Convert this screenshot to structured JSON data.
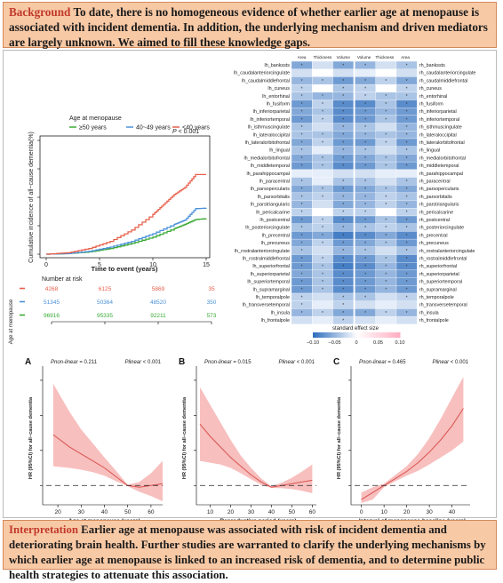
{
  "background": {
    "keyword": "Background",
    "text": " To date, there is no homogeneous evidence of whether earlier age at menopause is associated with incident dementia. In addition, the underlying mechanism and driven mediators are largely unknown. We aimed to fill these knowledge gaps."
  },
  "interpretation": {
    "keyword": "Interpretation",
    "text": " Earlier age at menopause was associated with risk of incident dementia and deteriorating brain health. Further studies are warranted to clarify the underlying mechanisms by which earlier age at menopause is linked to an increased risk of dementia, and to determine public health strategies to attenuate this association."
  },
  "colors": {
    "ge50": "#3aaa35",
    "mid": "#4a90d9",
    "lt40": "#e8604c",
    "ci_fill": "#f4a9a8",
    "ci_line": "#d9534f"
  },
  "km": {
    "legend_title": "Age at menopause",
    "legend": [
      "≥50 years",
      "40~49 years",
      "<40 years"
    ],
    "p_label": "P",
    "p_value": " < 0.001",
    "ylabel": "Cumulative incidence of all−cause dementia(%)",
    "xlabel": "Time to event (years)",
    "x_ticks": [
      "0",
      "5",
      "10",
      "15"
    ],
    "y_ticks": [
      "0",
      "1",
      "2",
      "3",
      "4"
    ],
    "risk_title": "Number at risk",
    "risk_group_label": "Age at menopause",
    "risk_rows": [
      [
        "4268",
        "6125",
        "5869",
        "35"
      ],
      [
        "51345",
        "50364",
        "48520",
        "350"
      ],
      [
        "96916",
        "95335",
        "92211",
        "573"
      ]
    ],
    "risk_x_ticks": [
      "0",
      "5",
      "10",
      "15"
    ],
    "chart_data": {
      "type": "line",
      "title": "",
      "xlabel": "Time to event (years)",
      "ylabel": "Cumulative incidence of all−cause dementia(%)",
      "xlim": [
        0,
        15
      ],
      "ylim": [
        0,
        4
      ],
      "series": [
        {
          "name": "≥50 years",
          "x": [
            0,
            2,
            4,
            6,
            8,
            10,
            12,
            13,
            14,
            15
          ],
          "y": [
            0,
            0.02,
            0.08,
            0.2,
            0.38,
            0.6,
            0.9,
            1.05,
            1.22,
            1.25
          ]
        },
        {
          "name": "40~49 years",
          "x": [
            0,
            2,
            4,
            6,
            8,
            10,
            12,
            13,
            14,
            15
          ],
          "y": [
            0,
            0.02,
            0.1,
            0.25,
            0.45,
            0.72,
            1.05,
            1.2,
            1.6,
            1.62
          ]
        },
        {
          "name": "<40 years",
          "x": [
            0,
            2,
            4,
            6,
            8,
            10,
            11,
            12,
            13,
            14,
            15
          ],
          "y": [
            0,
            0.05,
            0.2,
            0.45,
            0.85,
            1.4,
            1.75,
            2.1,
            2.35,
            2.8,
            2.8
          ]
        }
      ]
    }
  },
  "heatmap": {
    "columns": [
      "Area",
      "Thickness",
      "Volume",
      "Volume",
      "Thickness",
      "Area"
    ],
    "left_labels": [
      "lh_bankssts",
      "lh_caudalanteriorcingulate",
      "lh_caudalmiddlefrontal",
      "lh_cuneus",
      "lh_entorhinal",
      "lh_fusiform",
      "lh_inferiorparietal",
      "lh_inferiortemporal",
      "lh_isthmuscingulate",
      "lh_lateraloccipital",
      "lh_lateralorbitofrontal",
      "lh_lingual",
      "lh_medialorbitofrontal",
      "lh_middletemporal",
      "lh_parahippocampal",
      "lh_paracentral",
      "lh_parsopercularis",
      "lh_parsorbitalis",
      "lh_parstriangularis",
      "lh_pericalcarine",
      "lh_postcentral",
      "lh_posteriorcingulate",
      "lh_precentral",
      "lh_precuneus",
      "lh_rostralanteriorcingulate",
      "lh_rostralmiddlefrontal",
      "lh_superiorfrontal",
      "lh_superiorparietal",
      "lh_superiortemporal",
      "lh_supramarginal",
      "lh_temporalpole",
      "lh_transversetemporal",
      "lh_insula",
      "lh_frontalpole"
    ],
    "right_labels": [
      "rh_bankssts",
      "rh_caudalanteriorcingulate",
      "rh_caudalmiddlefrontal",
      "rh_cuneus",
      "rh_entorhinal",
      "rh_fusiform",
      "rh_inferiorparietal",
      "rh_inferiortemporal",
      "rh_isthmuscingulate",
      "rh_lateraloccipital",
      "rh_lateralorbitofrontal",
      "rh_lingual",
      "rh_medialorbitofrontal",
      "rh_middletemporal",
      "rh_parahippocampal",
      "rh_paracentral",
      "rh_parsopercularis",
      "rh_parsorbitalis",
      "rh_parstriangularis",
      "rh_pericalcarine",
      "rh_postcentral",
      "rh_posteriorcingulate",
      "rh_precentral",
      "rh_precuneus",
      "rh_rostralanteriorcingulate",
      "rh_rostralmiddlefrontal",
      "rh_superiorfrontal",
      "rh_superiorparietal",
      "rh_superiortemporal",
      "rh_supramarginal",
      "rh_temporalpole",
      "rh_transversetemporal",
      "rh_insula",
      "rh_frontalpole"
    ],
    "scale_title": "standard effect size",
    "scale_ticks": [
      "−0.10",
      "−0.05",
      "0",
      "0.05",
      "0.10"
    ],
    "chart_data": {
      "type": "heatmap",
      "values": [
        [
          -0.06,
          -0.02,
          -0.06,
          -0.05,
          -0.02,
          -0.04
        ],
        [
          -0.02,
          0.0,
          -0.02,
          -0.01,
          0.0,
          -0.02
        ],
        [
          -0.05,
          -0.04,
          -0.07,
          -0.06,
          -0.03,
          -0.06
        ],
        [
          -0.03,
          0.0,
          -0.04,
          -0.03,
          0.0,
          -0.03
        ],
        [
          -0.04,
          -0.05,
          -0.05,
          -0.03,
          -0.04,
          -0.04
        ],
        [
          -0.07,
          -0.03,
          -0.08,
          -0.08,
          -0.04,
          -0.08
        ],
        [
          -0.06,
          -0.04,
          -0.08,
          -0.07,
          -0.05,
          -0.07
        ],
        [
          -0.07,
          -0.03,
          -0.08,
          -0.07,
          -0.04,
          -0.07
        ],
        [
          -0.04,
          -0.02,
          -0.05,
          -0.04,
          -0.02,
          -0.05
        ],
        [
          -0.04,
          -0.04,
          -0.06,
          -0.05,
          -0.04,
          -0.05
        ],
        [
          -0.06,
          -0.03,
          -0.07,
          -0.07,
          -0.03,
          -0.07
        ],
        [
          -0.04,
          -0.01,
          -0.05,
          -0.04,
          -0.02,
          -0.04
        ],
        [
          -0.06,
          -0.04,
          -0.07,
          -0.06,
          -0.04,
          -0.06
        ],
        [
          -0.07,
          -0.04,
          -0.08,
          -0.07,
          -0.04,
          -0.07
        ],
        [
          -0.01,
          -0.01,
          -0.02,
          -0.02,
          -0.01,
          -0.01
        ],
        [
          -0.04,
          -0.01,
          -0.04,
          -0.04,
          -0.02,
          -0.04
        ],
        [
          -0.06,
          -0.04,
          -0.07,
          -0.06,
          -0.04,
          -0.06
        ],
        [
          -0.04,
          -0.03,
          -0.05,
          -0.05,
          -0.03,
          -0.04
        ],
        [
          -0.05,
          -0.02,
          -0.06,
          -0.05,
          -0.03,
          -0.05
        ],
        [
          -0.03,
          0.0,
          -0.03,
          -0.03,
          0.0,
          -0.03
        ],
        [
          -0.07,
          -0.03,
          -0.08,
          -0.07,
          -0.04,
          -0.07
        ],
        [
          -0.04,
          -0.03,
          -0.05,
          -0.04,
          -0.03,
          -0.04
        ],
        [
          -0.07,
          -0.06,
          -0.09,
          -0.08,
          -0.06,
          -0.08
        ],
        [
          -0.06,
          -0.03,
          -0.07,
          -0.06,
          -0.04,
          -0.07
        ],
        [
          -0.04,
          -0.02,
          -0.05,
          -0.04,
          -0.02,
          -0.04
        ],
        [
          -0.07,
          -0.03,
          -0.08,
          -0.07,
          -0.04,
          -0.08
        ],
        [
          -0.07,
          -0.04,
          -0.09,
          -0.08,
          -0.05,
          -0.08
        ],
        [
          -0.06,
          -0.04,
          -0.08,
          -0.07,
          -0.05,
          -0.07
        ],
        [
          -0.07,
          -0.04,
          -0.08,
          -0.07,
          -0.05,
          -0.07
        ],
        [
          -0.07,
          -0.04,
          -0.08,
          -0.07,
          -0.05,
          -0.07
        ],
        [
          -0.03,
          -0.02,
          -0.04,
          -0.04,
          -0.02,
          -0.03
        ],
        [
          -0.03,
          -0.01,
          -0.03,
          -0.02,
          -0.01,
          -0.02
        ],
        [
          -0.05,
          -0.03,
          -0.06,
          -0.06,
          -0.03,
          -0.05
        ],
        [
          -0.02,
          -0.01,
          -0.03,
          -0.02,
          -0.01,
          -0.02
        ]
      ],
      "xlabel": "",
      "ylabel": ""
    }
  },
  "rcs_panels": [
    {
      "letter": "A",
      "p_nonlinear_label": "Pnon-linear",
      "p_nonlinear_value": " = 0.211",
      "p_linear_label": "Plinear",
      "p_linear_value": " < 0.001",
      "ylabel": "HR (95%CI) for all−cause dementia",
      "xlabel": "Age at menopause (years)",
      "x_ticks": [
        "20",
        "30",
        "40",
        "50",
        "60"
      ],
      "y_ticks": [
        "1",
        "2",
        "3",
        "4"
      ],
      "chart_data": {
        "type": "line",
        "xlim": [
          15,
          65
        ],
        "ylim": [
          0.5,
          4.2
        ],
        "x": [
          18,
          25,
          30,
          35,
          40,
          45,
          50,
          55,
          60,
          65
        ],
        "hr": [
          2.45,
          2.1,
          1.9,
          1.7,
          1.5,
          1.25,
          1.0,
          0.95,
          1.0,
          1.05
        ],
        "lo": [
          1.55,
          1.5,
          1.45,
          1.38,
          1.28,
          1.12,
          0.98,
          0.82,
          0.7,
          0.55
        ],
        "hi": [
          3.9,
          3.1,
          2.6,
          2.2,
          1.8,
          1.42,
          1.02,
          1.1,
          1.35,
          1.7
        ],
        "ref": 1
      }
    },
    {
      "letter": "B",
      "p_nonlinear_label": "Pnon-linear",
      "p_nonlinear_value": " = 0.015",
      "p_linear_label": "Plinear",
      "p_linear_value": " < 0.001",
      "ylabel": "HR (95%CI) for all−cause dementia",
      "xlabel": "Reproductive period (years)",
      "x_ticks": [
        "10",
        "20",
        "30",
        "40",
        "50",
        "60"
      ],
      "y_ticks": [
        "1",
        "2",
        "3",
        "4"
      ],
      "chart_data": {
        "type": "line",
        "xlim": [
          5,
          62
        ],
        "ylim": [
          0.5,
          4.2
        ],
        "x": [
          5,
          10,
          15,
          20,
          25,
          30,
          35,
          40,
          45,
          50,
          55,
          60
        ],
        "hr": [
          2.75,
          2.4,
          2.1,
          1.8,
          1.55,
          1.3,
          1.1,
          0.95,
          1.0,
          1.05,
          1.1,
          1.15
        ],
        "lo": [
          1.7,
          1.65,
          1.6,
          1.5,
          1.35,
          1.18,
          1.02,
          0.93,
          0.92,
          0.9,
          0.85,
          0.78
        ],
        "hi": [
          3.8,
          3.3,
          2.8,
          2.3,
          1.85,
          1.5,
          1.2,
          0.98,
          1.08,
          1.22,
          1.4,
          1.6
        ],
        "ref": 1
      }
    },
    {
      "letter": "C",
      "p_nonlinear_label": "Pnon-linear",
      "p_nonlinear_value": " = 0.465",
      "p_linear_label": "Plinear",
      "p_linear_value": " < 0.001",
      "ylabel": "HR (95%CI) for all−cause dementia",
      "xlabel": "Interval of menopause-baseline (years)",
      "x_ticks": [
        "0",
        "10",
        "20",
        "30",
        "40"
      ],
      "y_ticks": [
        "1",
        "2",
        "3",
        "4"
      ],
      "chart_data": {
        "type": "line",
        "xlim": [
          -3,
          48
        ],
        "ylim": [
          0.5,
          4.2
        ],
        "x": [
          0,
          5,
          10,
          15,
          20,
          25,
          30,
          35,
          40,
          45
        ],
        "hr": [
          0.6,
          0.8,
          1.0,
          1.2,
          1.4,
          1.65,
          1.95,
          2.3,
          2.7,
          3.2
        ],
        "lo": [
          0.4,
          0.6,
          0.95,
          1.12,
          1.28,
          1.42,
          1.6,
          1.8,
          2.0,
          2.25
        ],
        "hi": [
          0.8,
          0.95,
          1.05,
          1.3,
          1.55,
          1.9,
          2.35,
          2.9,
          3.5,
          4.1
        ],
        "ref": 1
      }
    }
  ]
}
